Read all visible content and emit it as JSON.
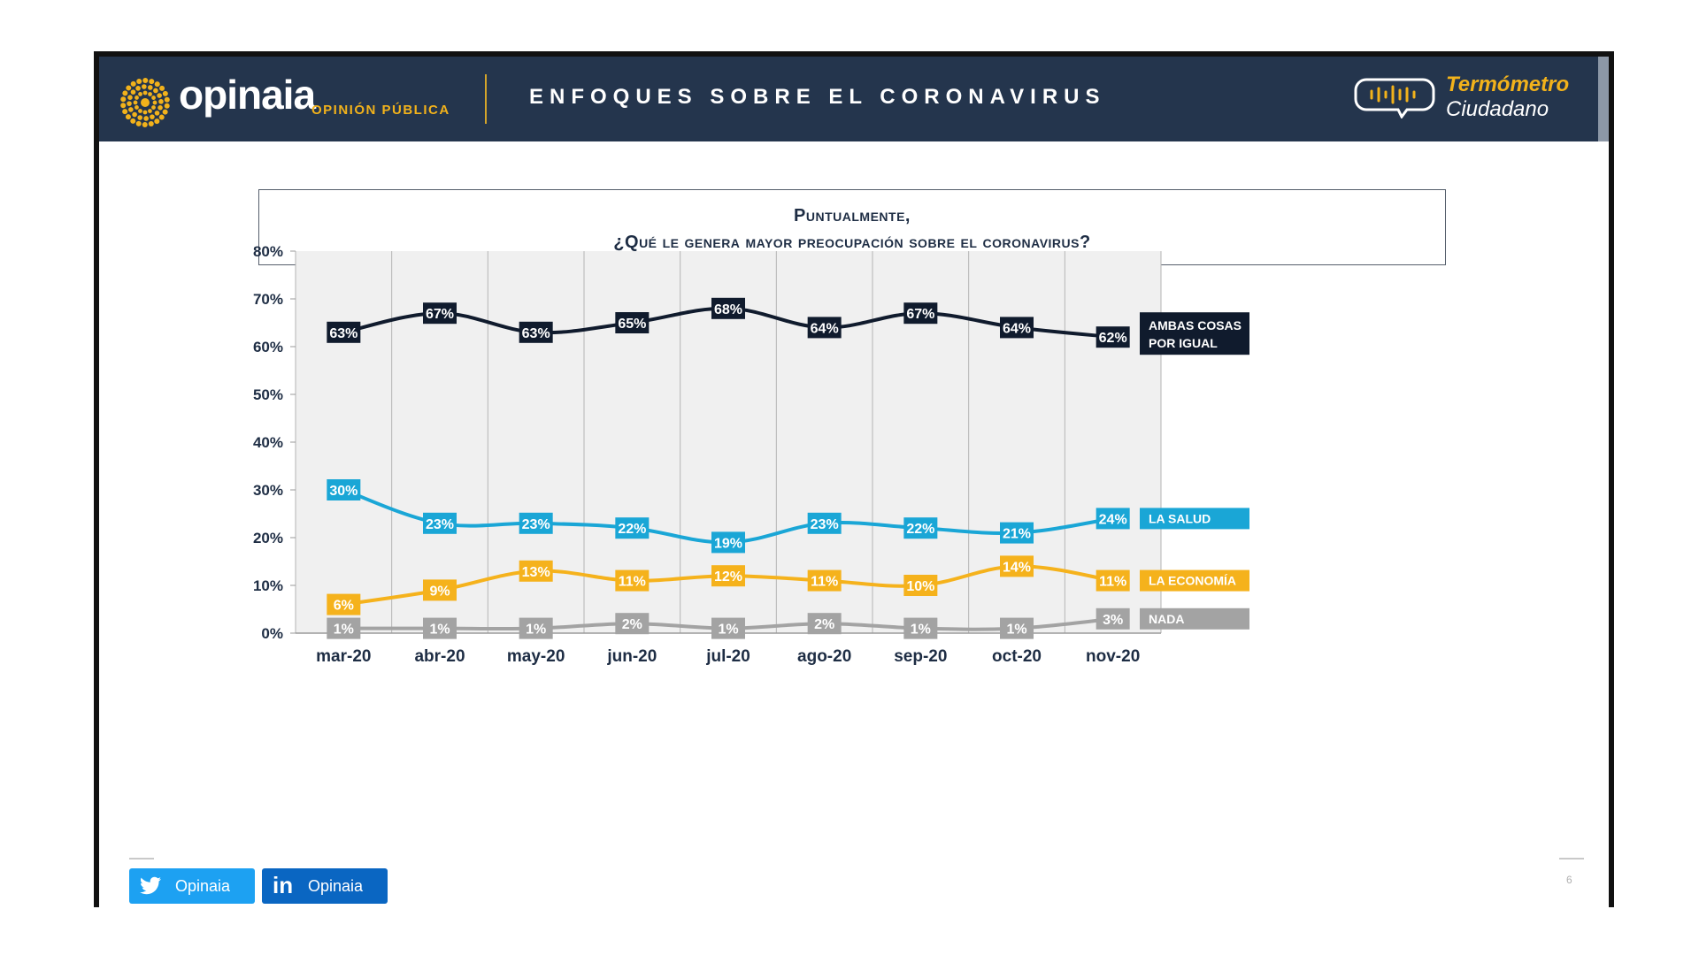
{
  "header": {
    "brand": "opinaia",
    "brand_sub": "OPINIÓN PÚBLICA",
    "title": "ENFOQUES SOBRE EL CORONAVIRUS",
    "badge_line1": "Termómetro",
    "badge_line2": "Ciudadano"
  },
  "question": {
    "line1": "Puntualmente,",
    "line2": "¿Qué le genera mayor preocupación sobre el coronavirus?"
  },
  "chart_data": {
    "type": "line",
    "categories": [
      "mar-20",
      "abr-20",
      "may-20",
      "jun-20",
      "jul-20",
      "ago-20",
      "sep-20",
      "oct-20",
      "nov-20"
    ],
    "ylim": [
      0,
      80
    ],
    "yticks": [
      "0%",
      "10%",
      "20%",
      "30%",
      "40%",
      "50%",
      "60%",
      "70%",
      "80%"
    ],
    "grid": "vertical",
    "legend": "right-end labels",
    "series": [
      {
        "name": "AMBAS COSAS POR IGUAL",
        "name_line1": "AMBAS COSAS",
        "name_line2": "POR IGUAL",
        "color": "#101b2d",
        "values": [
          63,
          67,
          63,
          65,
          68,
          64,
          67,
          64,
          62
        ]
      },
      {
        "name": "LA SALUD",
        "color": "#1aa6d6",
        "values": [
          30,
          23,
          23,
          22,
          19,
          23,
          22,
          21,
          24
        ]
      },
      {
        "name": "LA ECONOMÍA",
        "color": "#f5b21c",
        "values": [
          6,
          9,
          13,
          11,
          12,
          11,
          10,
          14,
          11
        ]
      },
      {
        "name": "NADA",
        "color": "#a3a3a3",
        "values": [
          1,
          1,
          1,
          2,
          1,
          2,
          1,
          1,
          3
        ]
      }
    ]
  },
  "footer": {
    "twitter_label": "Opinaia",
    "linkedin_label": "Opinaia",
    "linkedin_glyph": "in",
    "page_number": "6"
  },
  "colors": {
    "header_bg": "#24354d",
    "accent": "#f2b21b",
    "plot_bg": "#f0f0f0"
  }
}
